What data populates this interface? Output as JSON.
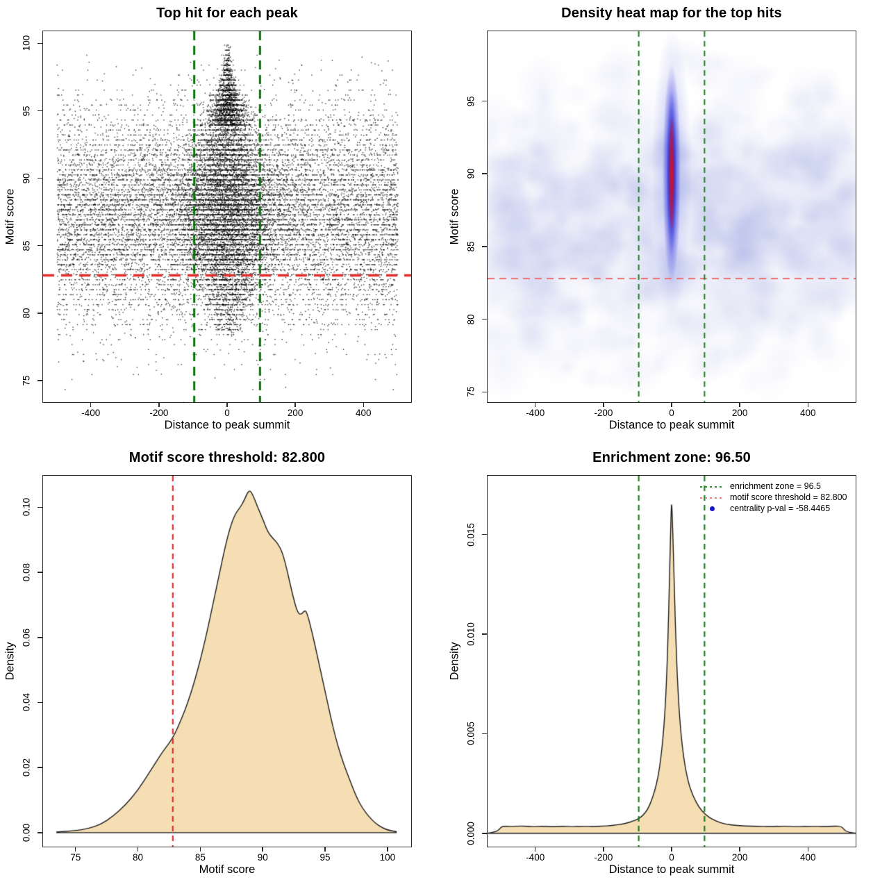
{
  "figure": {
    "background": "#ffffff",
    "box_color": "#2a2a2a"
  },
  "stats": {
    "motif_score_threshold": "82.800",
    "enrichment_zone": "96.5",
    "centrality_pval": "-58.4465"
  },
  "chart_data": [
    {
      "type": "scatter",
      "panel": "top-left",
      "title": "Top hit for each peak",
      "xlabel": "Distance to peak summit",
      "ylabel": "Motif score",
      "xlim": [
        -540,
        540
      ],
      "ylim": [
        73.4,
        100.9
      ],
      "x_ticks": [
        {
          "v": -400,
          "label": "-400"
        },
        {
          "v": -200,
          "label": "-200"
        },
        {
          "v": 0,
          "label": "0"
        },
        {
          "v": 200,
          "label": "200"
        },
        {
          "v": 400,
          "label": "400"
        }
      ],
      "y_ticks": [
        {
          "v": 75,
          "label": "75"
        },
        {
          "v": 80,
          "label": "80"
        },
        {
          "v": 85,
          "label": "85"
        },
        {
          "v": 90,
          "label": "90"
        },
        {
          "v": 95,
          "label": "95"
        },
        {
          "v": 100,
          "label": "100"
        }
      ],
      "point_color": "#000000",
      "points_model": {
        "seed": 20240817,
        "n_background": 12500,
        "bg_x_range": [
          -500,
          500
        ],
        "bg_y_mean": 87.3,
        "bg_y_sd": 3.9,
        "n_central": 9500,
        "central_y_mean": 88.0,
        "central_y_sd": 4.3,
        "needle_frac": 0.16,
        "needle_y_base": 94,
        "needle_y_sd": 2.0,
        "band_quantum": 0.37,
        "band_prob_bg": 0.6,
        "band_prob_central": 0.55
      },
      "enrichment_zone_lines": {
        "value": 96.5,
        "x_positions": [
          -96.5,
          96.5
        ],
        "color": "#0a700a",
        "dash": [
          13,
          8
        ],
        "width": 3
      },
      "threshold_line": {
        "value": 82.8,
        "color": "#e02d2d",
        "dash": [
          16,
          10
        ],
        "width": 3.5
      }
    },
    {
      "type": "heatmap",
      "panel": "top-right",
      "title": "Density heat map for the top hits",
      "xlabel": "Distance to peak summit",
      "ylabel": "Motif score",
      "xlim": [
        -540,
        540
      ],
      "ylim": [
        74.3,
        99.8
      ],
      "x_ticks": [
        {
          "v": -400,
          "label": "-400"
        },
        {
          "v": -200,
          "label": "-200"
        },
        {
          "v": 0,
          "label": "0"
        },
        {
          "v": 200,
          "label": "200"
        },
        {
          "v": 400,
          "label": "400"
        }
      ],
      "y_ticks": [
        {
          "v": 75,
          "label": "75"
        },
        {
          "v": 80,
          "label": "80"
        },
        {
          "v": 85,
          "label": "85"
        },
        {
          "v": 90,
          "label": "90"
        },
        {
          "v": 95,
          "label": "95"
        }
      ],
      "noise": {
        "seed": 99,
        "count": 780,
        "score_mean": 86.5,
        "score_sd": 4.5,
        "color_rgb": [
          155,
          165,
          225
        ]
      },
      "hotspot": {
        "x_center": 0,
        "score_center": 90,
        "glow": {
          "x_halfwidth_units": 118,
          "score_halfheight": 10.0,
          "rgba": [
            120,
            128,
            230,
            0.5
          ]
        },
        "blue_mid": {
          "x_halfwidth_units": 53,
          "score_halfheight": 7.6,
          "rgba": [
            40,
            40,
            220,
            0.85
          ]
        },
        "blue_deep": {
          "x_halfwidth_units": 31,
          "score_halfheight": 5.7,
          "rgba": [
            22,
            22,
            210,
            0.95
          ]
        },
        "red_core": {
          "x_halfwidth_units": 17,
          "score_halfheight": 4.1,
          "rgba": [
            228,
            20,
            20,
            1
          ]
        }
      },
      "enrichment_zone_lines": {
        "value": 96.5,
        "x_positions": [
          -96.5,
          96.5
        ],
        "color": "#1e7d1e",
        "dash": [
          8,
          6
        ],
        "width": 2
      },
      "threshold_line": {
        "value": 82.8,
        "color": "#ef6f6f",
        "dash": [
          10,
          7
        ],
        "width": 2
      }
    },
    {
      "type": "density",
      "panel": "bottom-left",
      "title": "Motif score threshold: 82.800",
      "xlabel": "Motif score",
      "ylabel": "Density",
      "xlim": [
        72.4,
        101.9
      ],
      "ylim": [
        -0.0043,
        0.1097
      ],
      "x_ticks": [
        {
          "v": 75,
          "label": "75"
        },
        {
          "v": 80,
          "label": "80"
        },
        {
          "v": 85,
          "label": "85"
        },
        {
          "v": 90,
          "label": "90"
        },
        {
          "v": 95,
          "label": "95"
        },
        {
          "v": 100,
          "label": "100"
        }
      ],
      "y_ticks": [
        {
          "v": 0,
          "label": "0.00"
        },
        {
          "v": 0.02,
          "label": "0.02"
        },
        {
          "v": 0.04,
          "label": "0.04"
        },
        {
          "v": 0.06,
          "label": "0.06"
        },
        {
          "v": 0.08,
          "label": "0.08"
        },
        {
          "v": 0.1,
          "label": "0.10"
        }
      ],
      "fill": "#F5DEB3",
      "stroke": "#1a1a1a",
      "curve": {
        "x": [
          73.5,
          75,
          76,
          77,
          78,
          79,
          80,
          81,
          82,
          82.8,
          83.5,
          84,
          84.5,
          85,
          85.5,
          86,
          86.5,
          87,
          87.4,
          87.8,
          88.2,
          88.5,
          88.9,
          89.2,
          89.6,
          90,
          90.4,
          90.8,
          91.2,
          91.6,
          92,
          92.4,
          92.8,
          93.1,
          93.4,
          93.6,
          94,
          94.4,
          94.8,
          95.2,
          95.6,
          96,
          96.5,
          97,
          97.5,
          98,
          98.5,
          99,
          99.5,
          100,
          100.7
        ],
        "y": [
          0.0002,
          0.0006,
          0.0012,
          0.0025,
          0.005,
          0.0085,
          0.013,
          0.019,
          0.025,
          0.029,
          0.035,
          0.04,
          0.046,
          0.053,
          0.061,
          0.07,
          0.079,
          0.088,
          0.094,
          0.098,
          0.1,
          0.102,
          0.1055,
          0.104,
          0.1,
          0.0965,
          0.0925,
          0.0905,
          0.089,
          0.086,
          0.08,
          0.073,
          0.0675,
          0.067,
          0.0685,
          0.067,
          0.061,
          0.054,
          0.047,
          0.04,
          0.033,
          0.027,
          0.021,
          0.016,
          0.011,
          0.0075,
          0.005,
          0.003,
          0.0017,
          0.0008,
          0.0003
        ]
      },
      "threshold_line": {
        "value": 82.8,
        "orientation": "vertical",
        "color": "#e02d2d",
        "dash": [
          8,
          6
        ],
        "width": 2.2
      }
    },
    {
      "type": "density",
      "panel": "bottom-right",
      "title": "Enrichment zone: 96.50",
      "xlabel": "Distance to peak summit",
      "ylabel": "Density",
      "xlim": [
        -540,
        540
      ],
      "ylim": [
        -0.00067,
        0.01795
      ],
      "x_ticks": [
        {
          "v": -400,
          "label": "-400"
        },
        {
          "v": -200,
          "label": "-200"
        },
        {
          "v": 0,
          "label": "0"
        },
        {
          "v": 200,
          "label": "200"
        },
        {
          "v": 400,
          "label": "400"
        }
      ],
      "y_ticks": [
        {
          "v": 0,
          "label": "0.000"
        },
        {
          "v": 0.005,
          "label": "0.005"
        },
        {
          "v": 0.01,
          "label": "0.010"
        },
        {
          "v": 0.015,
          "label": "0.015"
        }
      ],
      "fill": "#F5DEB3",
      "stroke": "#1a1a1a",
      "curve": {
        "x": [
          -540,
          -512,
          -502,
          -495,
          -470,
          -440,
          -410,
          -380,
          -350,
          -320,
          -290,
          -260,
          -230,
          -200,
          -180,
          -160,
          -145,
          -130,
          -115,
          -100,
          -85,
          -70,
          -60,
          -50,
          -40,
          -32,
          -24,
          -17,
          -11,
          -6,
          -2,
          0,
          2,
          6,
          11,
          18,
          26,
          36,
          48,
          62,
          80,
          100,
          120,
          140,
          160,
          185,
          215,
          250,
          290,
          330,
          370,
          410,
          450,
          480,
          495,
          502,
          512,
          540
        ],
        "y": [
          0,
          8e-05,
          0.00028,
          0.00036,
          0.00034,
          0.00037,
          0.00033,
          0.00036,
          0.00032,
          0.00036,
          0.00033,
          0.00035,
          0.00034,
          0.00036,
          0.00038,
          0.00042,
          0.00046,
          0.00052,
          0.0006,
          0.0007,
          0.00088,
          0.0012,
          0.0016,
          0.0021,
          0.0028,
          0.0037,
          0.005,
          0.0068,
          0.0095,
          0.013,
          0.0158,
          0.0167,
          0.0159,
          0.0137,
          0.0104,
          0.0073,
          0.0052,
          0.0037,
          0.0026,
          0.0019,
          0.0013,
          0.00092,
          0.0007,
          0.00055,
          0.00046,
          0.0004,
          0.00037,
          0.00035,
          0.00034,
          0.00036,
          0.00033,
          0.00035,
          0.00034,
          0.00036,
          0.00035,
          0.00028,
          8e-05,
          0
        ]
      },
      "enrichment_zone_lines": {
        "value": 96.5,
        "x_positions": [
          -96.5,
          96.5
        ],
        "color": "#1e7d1e",
        "dash": [
          8,
          6
        ],
        "width": 2.2
      },
      "legend": [
        {
          "label": "enrichment zone = 96.5",
          "glyph": "dotted-line",
          "color": "#2e8b2e"
        },
        {
          "label": "motif score threshold = 82.800",
          "glyph": "dotted-line",
          "color": "#f08080"
        },
        {
          "label": "centrality p-val = -58.4465",
          "glyph": "point",
          "color": "#1414cc"
        }
      ]
    }
  ]
}
